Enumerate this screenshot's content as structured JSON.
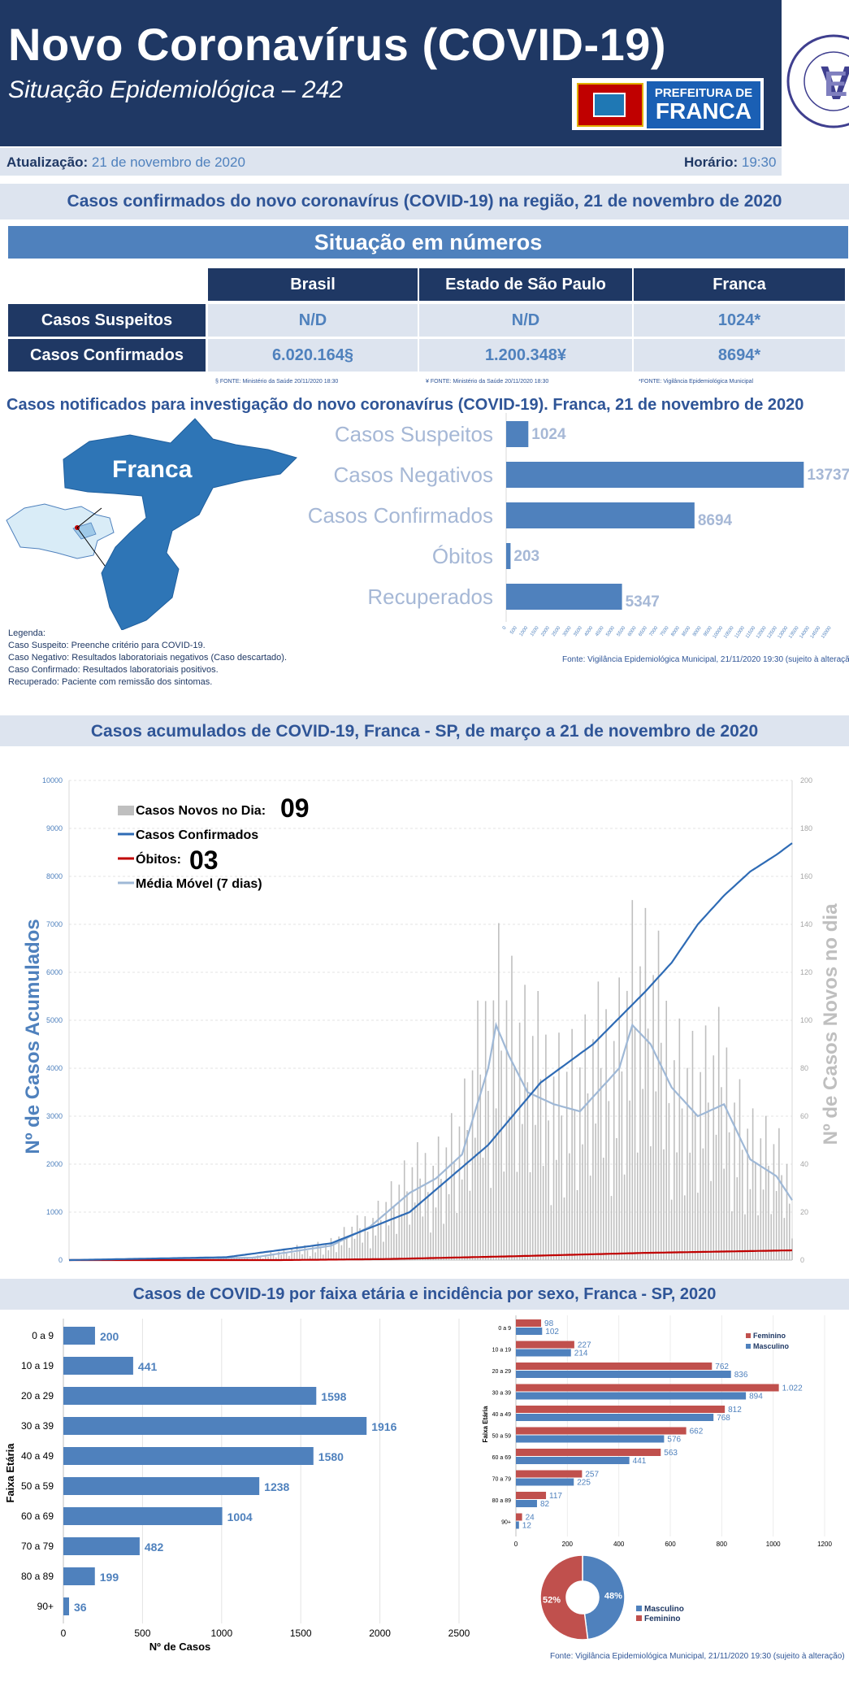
{
  "header": {
    "title": "Novo Coronavírus (COVID-19)",
    "subtitle": "Situação Epidemiológica – 242",
    "prefeitura_line1": "PREFEITURA DE",
    "prefeitura_line2": "FRANCA",
    "vigilancia_logo_text": "Prefeitura de Franca · Vigilância Epidemiológica · Secretaria Municipal de Saúde",
    "colors": {
      "navy": "#1f3864",
      "blue": "#4f81bd",
      "light": "#dde4ef"
    }
  },
  "update": {
    "label": "Atualização:",
    "date": "21 de novembro de 2020",
    "time_label": "Horário:",
    "time": "19:30"
  },
  "section1": {
    "title": "Casos confirmados do novo coronavírus (COVID-19) na região, 21 de novembro de 2020",
    "banner": "Situação em números",
    "columns": [
      "Brasil",
      "Estado de São Paulo",
      "Franca"
    ],
    "rows": [
      {
        "label": "Casos Suspeitos",
        "values": [
          "N/D",
          "N/D",
          "1024*"
        ]
      },
      {
        "label": "Casos Confirmados",
        "values": [
          "6.020.164§",
          "1.200.348¥",
          "8694*"
        ]
      }
    ],
    "footnotes": [
      "§ FONTE: Ministério da Saúde 20/11/2020 18:30",
      "¥ FONTE: Ministério da Saúde 20/11/2020 18:30",
      "*FONTE: Vigilância Epidemiológica Municipal"
    ]
  },
  "section2": {
    "title": "Casos notificados para investigação do novo coronavírus (COVID-19). Franca, 21 de novembro de 2020",
    "map_label": "Franca",
    "legend": [
      "Legenda:",
      "Caso Suspeito: Preenche critério para COVID-19.",
      "Caso Negativo: Resultados laboratoriais negativos (Caso descartado).",
      "Caso Confirmado: Resultados laboratoriais positivos.",
      "Recuperado: Paciente com remissão dos sintomas."
    ],
    "source": "Fonte: Vigilância Epidemiológica Municipal, 21/11/2020 19:30  (sujeito à alteração)"
  },
  "section3": {
    "title": "Casos acumulados de COVID-19, Franca - SP, de março a 21 de novembro de 2020"
  },
  "section4": {
    "title": "Casos de COVID-19 por faixa etária e incidência por sexo, Franca - SP, 2020",
    "source": "Fonte: Vigilância Epidemiológica Municipal, 21/11/2020 19:30 (sujeito à alteração)"
  },
  "chart_data": [
    {
      "type": "bar",
      "orientation": "horizontal",
      "categories": [
        "Casos Suspeitos",
        "Casos Negativos",
        "Casos Confirmados",
        "Óbitos",
        "Recuperados"
      ],
      "values": [
        1024,
        13737,
        8694,
        203,
        5347
      ],
      "xlim": [
        0,
        15000
      ],
      "xticks": [
        "0",
        "500",
        "1000",
        "1500",
        "2000",
        "2500",
        "3000",
        "3500",
        "4000",
        "4500",
        "5000",
        "5500",
        "6000",
        "6500",
        "7000",
        "7500",
        "8000",
        "8500",
        "9000",
        "9500",
        "10000",
        "10500",
        "11000",
        "11500",
        "12000",
        "12500",
        "13000",
        "13500",
        "14000",
        "14500",
        "15000"
      ],
      "color": "#4f81bd"
    },
    {
      "type": "line",
      "period": "março a 21 de novembro de 2020",
      "ylabel": "Nº de Casos Acumulados",
      "y2label": "Nº de Casos Novos no dia",
      "ylim": [
        0,
        10000
      ],
      "y2lim": [
        0,
        200
      ],
      "yticks": [
        "0",
        "1000",
        "2000",
        "3000",
        "4000",
        "5000",
        "6000",
        "7000",
        "8000",
        "9000",
        "10000"
      ],
      "y2ticks": [
        "0",
        "20",
        "40",
        "60",
        "80",
        "100",
        "120",
        "140",
        "160",
        "180",
        "200"
      ],
      "legend": {
        "new_cases": "Casos Novos no Dia:",
        "new_cases_value": "09",
        "confirmed": "Casos Confirmados",
        "deaths": "Óbitos:",
        "deaths_value": "03",
        "moving_avg": "Média Móvel (7 dias)"
      },
      "colors": {
        "new_cases": "#bfbfbf",
        "confirmed": "#2e6bb5",
        "deaths": "#c00000",
        "moving_avg": "#9fb8d6"
      },
      "confirmed_anchors": [
        [
          0,
          0
        ],
        [
          60,
          60
        ],
        [
          100,
          350
        ],
        [
          130,
          1000
        ],
        [
          160,
          2400
        ],
        [
          180,
          3700
        ],
        [
          200,
          4500
        ],
        [
          220,
          5600
        ],
        [
          230,
          6200
        ],
        [
          240,
          7000
        ],
        [
          250,
          7600
        ],
        [
          260,
          8100
        ],
        [
          270,
          8450
        ],
        [
          276,
          8694
        ]
      ],
      "deaths_anchors": [
        [
          0,
          0
        ],
        [
          80,
          0
        ],
        [
          120,
          20
        ],
        [
          170,
          80
        ],
        [
          220,
          150
        ],
        [
          276,
          203
        ]
      ],
      "moving_avg_anchors": [
        [
          0,
          0
        ],
        [
          70,
          1
        ],
        [
          100,
          6
        ],
        [
          115,
          14
        ],
        [
          130,
          28
        ],
        [
          140,
          34
        ],
        [
          150,
          44
        ],
        [
          160,
          80
        ],
        [
          163,
          98
        ],
        [
          168,
          85
        ],
        [
          175,
          70
        ],
        [
          185,
          65
        ],
        [
          195,
          62
        ],
        [
          210,
          80
        ],
        [
          215,
          98
        ],
        [
          222,
          90
        ],
        [
          230,
          72
        ],
        [
          240,
          60
        ],
        [
          250,
          65
        ],
        [
          260,
          42
        ],
        [
          270,
          35
        ],
        [
          276,
          25
        ]
      ],
      "final_totals": {
        "confirmed": 8694,
        "deaths": 203
      }
    },
    {
      "type": "bar",
      "orientation": "horizontal",
      "ylabel": "Faixa Etária",
      "xlabel": "Nº de Casos",
      "categories": [
        "0 a 9",
        "10 a 19",
        "20 a 29",
        "30 a 39",
        "40 a 49",
        "50 a 59",
        "60  a 69",
        "70 a 79",
        "80 a 89",
        "90+"
      ],
      "values": [
        200,
        441,
        1598,
        1916,
        1580,
        1238,
        1004,
        482,
        199,
        36
      ],
      "xlim": [
        0,
        2500
      ],
      "xticks": [
        "0",
        "500",
        "1000",
        "1500",
        "2000",
        "2500"
      ],
      "color": "#4f81bd"
    },
    {
      "type": "bar",
      "orientation": "horizontal",
      "ylabel": "Faixa Etária",
      "xlabel": "Nº de Casos",
      "categories": [
        "0 a 9",
        "10 a 19",
        "20 a 29",
        "30 a 39",
        "40 a 49",
        "50 a 59",
        "60 a 69",
        "70 a 79",
        "80 a 89",
        "90+"
      ],
      "series": [
        {
          "name": "Feminino",
          "values": [
            98,
            227,
            762,
            1022,
            812,
            662,
            563,
            257,
            117,
            24
          ],
          "labels": [
            "98",
            "227",
            "762",
            "1.022",
            "812",
            "662",
            "563",
            "257",
            "117",
            "24"
          ],
          "color": "#c0504d"
        },
        {
          "name": "Masculino",
          "values": [
            102,
            214,
            836,
            894,
            768,
            576,
            441,
            225,
            82,
            12
          ],
          "labels": [
            "102",
            "214",
            "836",
            "894",
            "768",
            "576",
            "441",
            "225",
            "82",
            "12"
          ],
          "color": "#4f81bd"
        }
      ],
      "xlim": [
        0,
        1200
      ],
      "xticks": [
        "0",
        "200",
        "400",
        "600",
        "800",
        "1000",
        "1200"
      ]
    },
    {
      "type": "pie",
      "categories": [
        "Masculino",
        "Feminino"
      ],
      "values": [
        48,
        52
      ],
      "labels": [
        "48%",
        "52%"
      ],
      "colors": [
        "#4f81bd",
        "#c0504d"
      ]
    }
  ]
}
